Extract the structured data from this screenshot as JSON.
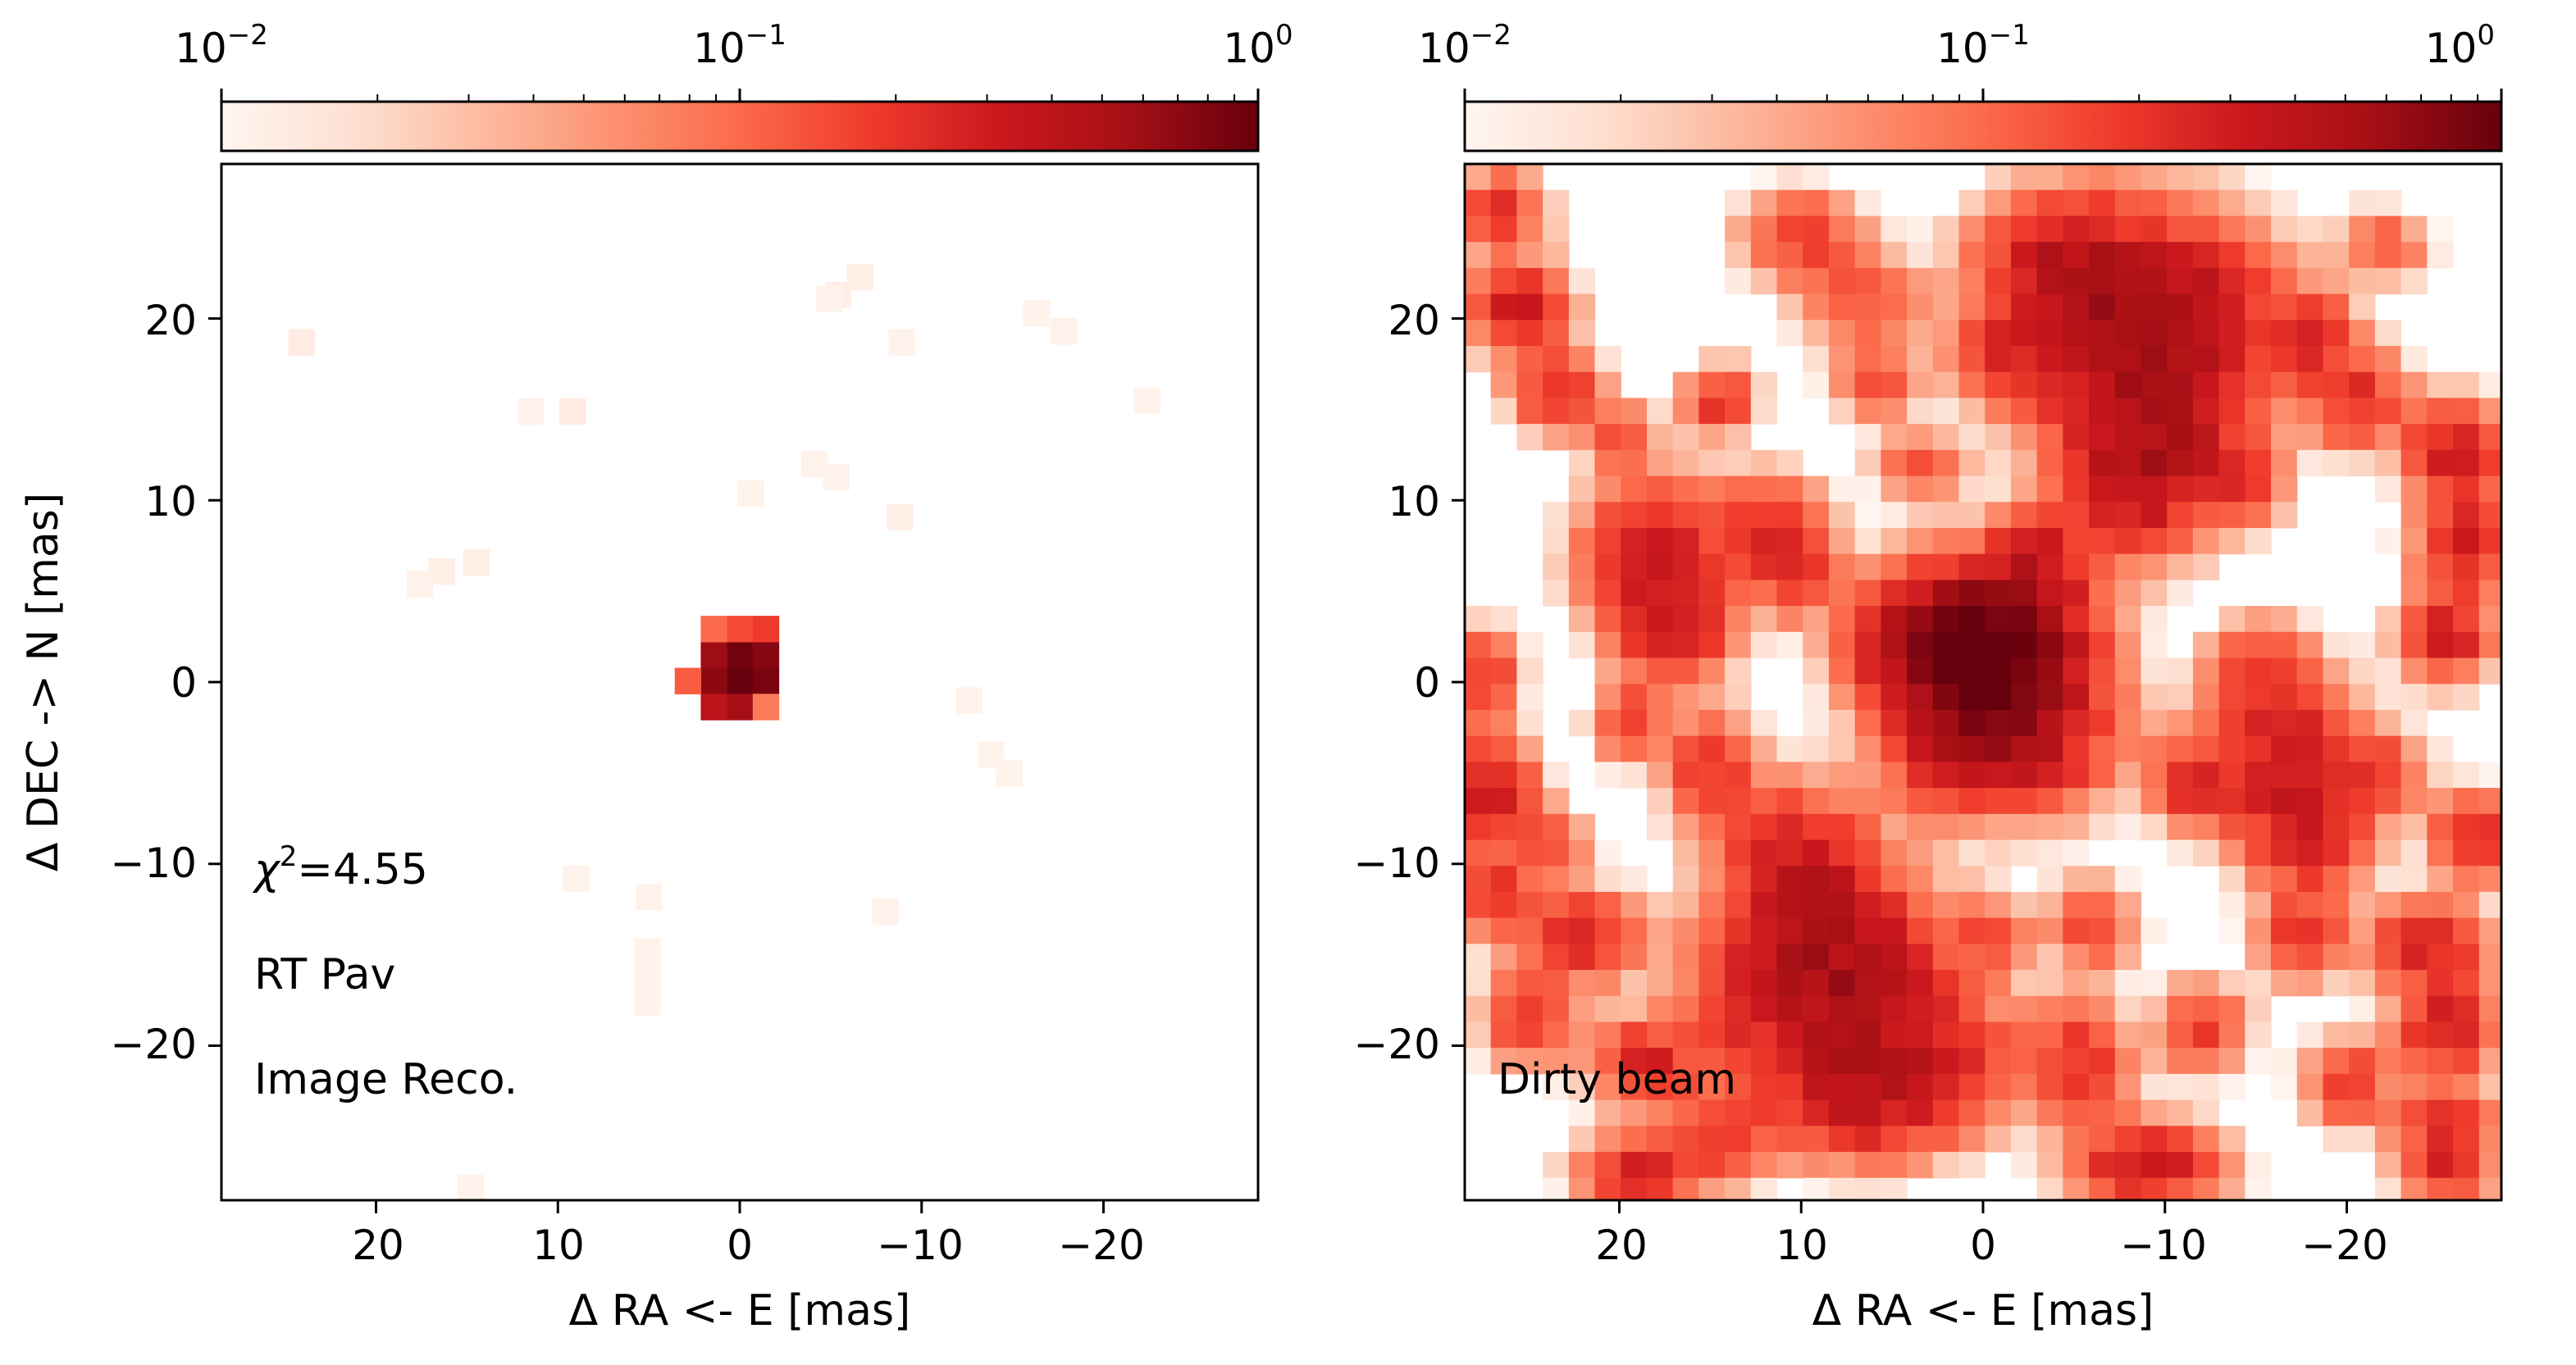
{
  "chart_data": [
    {
      "type": "heatmap",
      "panel": "left",
      "xlabel": "Δ RA <- E [mas]",
      "ylabel": "Δ DEC -> N [mas]",
      "xlim": [
        28.5,
        -28.5
      ],
      "ylim": [
        -28.5,
        28.5
      ],
      "pixel_size_mas": 1.43,
      "x_ticks": [
        {
          "value": 20,
          "label": "20"
        },
        {
          "value": 10,
          "label": "10"
        },
        {
          "value": 0,
          "label": "0"
        },
        {
          "value": -10,
          "label": "−10"
        },
        {
          "value": -20,
          "label": "−20"
        }
      ],
      "y_ticks": [
        {
          "value": 20,
          "label": "20"
        },
        {
          "value": 10,
          "label": "10"
        },
        {
          "value": 0,
          "label": "0"
        },
        {
          "value": -10,
          "label": "−10"
        },
        {
          "value": -20,
          "label": "−20"
        }
      ],
      "colormap": "Reds",
      "color_scale": "log",
      "colorbar": {
        "placement": "top",
        "range": [
          0.01,
          1
        ],
        "ticks": [
          {
            "value": 0.01,
            "base": "10",
            "exp": "−2"
          },
          {
            "value": 0.1,
            "base": "10",
            "exp": "−1"
          },
          {
            "value": 1,
            "base": "10",
            "exp": "0"
          }
        ]
      },
      "annotations": {
        "chi2_symbol": "χ",
        "chi2_exp": "2",
        "chi2_value": "=4.55",
        "target": "RT Pav",
        "label": "Image Reco."
      },
      "pixels": [
        {
          "x": 0,
          "y": 1.5,
          "v": 0.9
        },
        {
          "x": -1.43,
          "y": 1.5,
          "v": 0.75
        },
        {
          "x": 1.43,
          "y": 1.5,
          "v": 0.6
        },
        {
          "x": 0,
          "y": 0.07,
          "v": 1.0
        },
        {
          "x": -1.43,
          "y": 0.07,
          "v": 0.85
        },
        {
          "x": 1.43,
          "y": 0.07,
          "v": 0.7
        },
        {
          "x": 2.86,
          "y": 0.07,
          "v": 0.12
        },
        {
          "x": 0,
          "y": 2.93,
          "v": 0.15
        },
        {
          "x": 1.43,
          "y": 2.93,
          "v": 0.1
        },
        {
          "x": -1.43,
          "y": 2.93,
          "v": 0.18
        },
        {
          "x": 0,
          "y": -1.36,
          "v": 0.55
        },
        {
          "x": 1.43,
          "y": -1.36,
          "v": 0.4
        },
        {
          "x": -1.43,
          "y": -1.36,
          "v": 0.08
        },
        {
          "x": -5.4,
          "y": 21.3,
          "v": 0.012
        },
        {
          "x": -6.6,
          "y": 22.3,
          "v": 0.012
        },
        {
          "x": -4.9,
          "y": 21.1,
          "v": 0.011
        },
        {
          "x": 24.1,
          "y": 18.7,
          "v": 0.013
        },
        {
          "x": -8.9,
          "y": 18.7,
          "v": 0.011
        },
        {
          "x": -16.3,
          "y": 20.3,
          "v": 0.011
        },
        {
          "x": -17.8,
          "y": 19.3,
          "v": 0.011
        },
        {
          "x": 11.5,
          "y": 14.9,
          "v": 0.011
        },
        {
          "x": 9.2,
          "y": 14.9,
          "v": 0.013
        },
        {
          "x": -22.4,
          "y": 15.5,
          "v": 0.011
        },
        {
          "x": -4.1,
          "y": 12.0,
          "v": 0.011
        },
        {
          "x": -5.3,
          "y": 11.3,
          "v": 0.011
        },
        {
          "x": -0.6,
          "y": 10.4,
          "v": 0.011
        },
        {
          "x": -8.8,
          "y": 9.1,
          "v": 0.012
        },
        {
          "x": 16.4,
          "y": 6.1,
          "v": 0.012
        },
        {
          "x": 14.5,
          "y": 6.6,
          "v": 0.012
        },
        {
          "x": 17.6,
          "y": 5.4,
          "v": 0.011
        },
        {
          "x": -12.6,
          "y": -1.0,
          "v": 0.011
        },
        {
          "x": -13.8,
          "y": -4.0,
          "v": 0.011
        },
        {
          "x": -14.8,
          "y": -5.0,
          "v": 0.011
        },
        {
          "x": 9.0,
          "y": -10.8,
          "v": 0.011
        },
        {
          "x": 5.0,
          "y": -11.8,
          "v": 0.011
        },
        {
          "x": -8.0,
          "y": -12.6,
          "v": 0.011
        },
        {
          "x": 5.1,
          "y": -14.8,
          "v": 0.011
        },
        {
          "x": 5.1,
          "y": -16.2,
          "v": 0.011
        },
        {
          "x": 5.1,
          "y": -17.6,
          "v": 0.011
        },
        {
          "x": 14.8,
          "y": -27.8,
          "v": 0.011
        }
      ]
    },
    {
      "type": "heatmap",
      "panel": "right",
      "xlabel": "Δ RA <- E [mas]",
      "ylabel": "",
      "xlim": [
        28.5,
        -28.5
      ],
      "ylim": [
        -28.5,
        28.5
      ],
      "pixel_size_mas": 1.43,
      "x_ticks": [
        {
          "value": 20,
          "label": "20"
        },
        {
          "value": 10,
          "label": "10"
        },
        {
          "value": 0,
          "label": "0"
        },
        {
          "value": -10,
          "label": "−10"
        },
        {
          "value": -20,
          "label": "−20"
        }
      ],
      "y_ticks": [
        {
          "value": 20,
          "label": "20"
        },
        {
          "value": 10,
          "label": "10"
        },
        {
          "value": 0,
          "label": "0"
        },
        {
          "value": -10,
          "label": "−10"
        },
        {
          "value": -20,
          "label": "−20"
        }
      ],
      "colormap": "Reds",
      "color_scale": "log",
      "colorbar": {
        "placement": "top",
        "range": [
          0.01,
          1
        ],
        "ticks": [
          {
            "value": 0.01,
            "base": "10",
            "exp": "−2"
          },
          {
            "value": 0.1,
            "base": "10",
            "exp": "−1"
          },
          {
            "value": 1,
            "base": "10",
            "exp": "0"
          }
        ]
      },
      "annotations": {
        "label": "Dirty beam"
      },
      "blobs": [
        {
          "x": 0,
          "y": 0.5,
          "amp": 1.0,
          "sx": 2.8,
          "sy": 2.6
        },
        {
          "x": -1.5,
          "y": 3.5,
          "amp": 0.38,
          "sx": 3.0,
          "sy": 2.5
        },
        {
          "x": 3.5,
          "y": 2.0,
          "amp": 0.3,
          "sx": 2.5,
          "sy": 2.5
        },
        {
          "x": -2.5,
          "y": -3.0,
          "amp": 0.3,
          "sx": 3.0,
          "sy": 2.5
        },
        {
          "x": 2.0,
          "y": -4.5,
          "amp": 0.18,
          "sx": 2.0,
          "sy": 2.0
        },
        {
          "x": -8.0,
          "y": 20.0,
          "amp": 0.45,
          "sx": 4.5,
          "sy": 3.5
        },
        {
          "x": -9.5,
          "y": 15.0,
          "amp": 0.35,
          "sx": 3.0,
          "sy": 3.0
        },
        {
          "x": -8.5,
          "y": 11.0,
          "amp": 0.3,
          "sx": 2.5,
          "sy": 2.5
        },
        {
          "x": -4.5,
          "y": 23.5,
          "amp": 0.25,
          "sx": 2.5,
          "sy": 2.0
        },
        {
          "x": 8.0,
          "y": -17.0,
          "amp": 0.5,
          "sx": 4.0,
          "sy": 3.5
        },
        {
          "x": 10.0,
          "y": -11.0,
          "amp": 0.35,
          "sx": 2.5,
          "sy": 3.0
        },
        {
          "x": 6.5,
          "y": -23.0,
          "amp": 0.3,
          "sx": 3.0,
          "sy": 2.0
        },
        {
          "x": 1.5,
          "y": -21.0,
          "amp": 0.2,
          "sx": 2.0,
          "sy": 2.0
        },
        {
          "x": 18.0,
          "y": 7.0,
          "amp": 0.3,
          "sx": 2.5,
          "sy": 2.5
        },
        {
          "x": 17.0,
          "y": 3.0,
          "amp": 0.3,
          "sx": 1.8,
          "sy": 1.8
        },
        {
          "x": 12.0,
          "y": 9.0,
          "amp": 0.18,
          "sx": 2.0,
          "sy": 1.5
        },
        {
          "x": -16.5,
          "y": -4.0,
          "amp": 0.3,
          "sx": 2.5,
          "sy": 3.0
        },
        {
          "x": -18.0,
          "y": -8.5,
          "amp": 0.22,
          "sx": 2.0,
          "sy": 2.0
        },
        {
          "x": -15.0,
          "y": 1.0,
          "amp": 0.15,
          "sx": 1.5,
          "sy": 1.5
        },
        {
          "x": 25.5,
          "y": 20.5,
          "amp": 0.3,
          "sx": 1.6,
          "sy": 1.6
        },
        {
          "x": 23.5,
          "y": 16.0,
          "amp": 0.22,
          "sx": 1.5,
          "sy": 1.3
        },
        {
          "x": 26.5,
          "y": 26.0,
          "amp": 0.2,
          "sx": 1.5,
          "sy": 1.3
        },
        {
          "x": 20.0,
          "y": 13.5,
          "amp": 0.12,
          "sx": 1.2,
          "sy": 1.2
        },
        {
          "x": 14.5,
          "y": 15.5,
          "amp": 0.2,
          "sx": 1.2,
          "sy": 1.2
        },
        {
          "x": 10.0,
          "y": 24.5,
          "amp": 0.18,
          "sx": 2.0,
          "sy": 1.5
        },
        {
          "x": 7.0,
          "y": 21.0,
          "amp": 0.15,
          "sx": 2.0,
          "sy": 1.5
        },
        {
          "x": 3.5,
          "y": 12.0,
          "amp": 0.12,
          "sx": 1.5,
          "sy": 1.2
        },
        {
          "x": -3.0,
          "y": 7.0,
          "amp": 0.2,
          "sx": 1.5,
          "sy": 1.5
        },
        {
          "x": 10.5,
          "y": 6.0,
          "amp": 0.22,
          "sx": 1.5,
          "sy": 1.5
        },
        {
          "x": -18.0,
          "y": 19.0,
          "amp": 0.2,
          "sx": 1.5,
          "sy": 1.5
        },
        {
          "x": -20.5,
          "y": 15.5,
          "amp": 0.22,
          "sx": 1.8,
          "sy": 1.6
        },
        {
          "x": -26.0,
          "y": 12.5,
          "amp": 0.3,
          "sx": 1.7,
          "sy": 1.7
        },
        {
          "x": -26.5,
          "y": 7.5,
          "amp": 0.3,
          "sx": 1.6,
          "sy": 1.6
        },
        {
          "x": -25.5,
          "y": 2.5,
          "amp": 0.28,
          "sx": 1.5,
          "sy": 1.5
        },
        {
          "x": -27.0,
          "y": -8.5,
          "amp": 0.22,
          "sx": 1.5,
          "sy": 1.5
        },
        {
          "x": -24.5,
          "y": -14.5,
          "amp": 0.26,
          "sx": 2.0,
          "sy": 1.5
        },
        {
          "x": -25.5,
          "y": -19.0,
          "amp": 0.3,
          "sx": 1.6,
          "sy": 1.5
        },
        {
          "x": -25.5,
          "y": -24.5,
          "amp": 0.22,
          "sx": 1.8,
          "sy": 1.5
        },
        {
          "x": -20.0,
          "y": -22.0,
          "amp": 0.18,
          "sx": 1.5,
          "sy": 1.5
        },
        {
          "x": -17.5,
          "y": -14.0,
          "amp": 0.2,
          "sx": 1.5,
          "sy": 1.5
        },
        {
          "x": -11.5,
          "y": -5.5,
          "amp": 0.22,
          "sx": 1.5,
          "sy": 1.5
        },
        {
          "x": -9.0,
          "y": -26.5,
          "amp": 0.3,
          "sx": 2.5,
          "sy": 1.5
        },
        {
          "x": -5.0,
          "y": -21.0,
          "amp": 0.22,
          "sx": 1.8,
          "sy": 2.0
        },
        {
          "x": -12.0,
          "y": -19.0,
          "amp": 0.18,
          "sx": 1.5,
          "sy": 1.5
        },
        {
          "x": 27.0,
          "y": -6.0,
          "amp": 0.3,
          "sx": 1.5,
          "sy": 2.0
        },
        {
          "x": 27.5,
          "y": 0.5,
          "amp": 0.2,
          "sx": 1.2,
          "sy": 1.5
        },
        {
          "x": 27.0,
          "y": -11.5,
          "amp": 0.2,
          "sx": 1.5,
          "sy": 1.5
        },
        {
          "x": 22.0,
          "y": -14.0,
          "amp": 0.25,
          "sx": 2.0,
          "sy": 1.5
        },
        {
          "x": 25.0,
          "y": -18.5,
          "amp": 0.22,
          "sx": 1.5,
          "sy": 1.5
        },
        {
          "x": 18.5,
          "y": -21.0,
          "amp": 0.25,
          "sx": 1.8,
          "sy": 1.5
        },
        {
          "x": 19.0,
          "y": -27.0,
          "amp": 0.25,
          "sx": 2.0,
          "sy": 1.3
        },
        {
          "x": 14.5,
          "y": -25.0,
          "amp": 0.2,
          "sx": 1.8,
          "sy": 1.5
        },
        {
          "x": 15.0,
          "y": -5.0,
          "amp": 0.2,
          "sx": 1.5,
          "sy": 2.0
        },
        {
          "x": 19.5,
          "y": -2.0,
          "amp": 0.15,
          "sx": 1.2,
          "sy": 1.5
        },
        {
          "x": -6.0,
          "y": -13.5,
          "amp": 0.15,
          "sx": 1.5,
          "sy": 1.5
        },
        {
          "x": -0.5,
          "y": -14.0,
          "amp": 0.12,
          "sx": 1.2,
          "sy": 1.2
        },
        {
          "x": -22.0,
          "y": -5.0,
          "amp": 0.15,
          "sx": 1.5,
          "sy": 1.5
        },
        {
          "x": -14.0,
          "y": 11.0,
          "amp": 0.16,
          "sx": 1.5,
          "sy": 1.5
        },
        {
          "x": -13.5,
          "y": 22.0,
          "amp": 0.14,
          "sx": 1.5,
          "sy": 1.2
        },
        {
          "x": -22.0,
          "y": 24.0,
          "amp": 0.12,
          "sx": 1.5,
          "sy": 1.2
        },
        {
          "x": 6.0,
          "y": 16.5,
          "amp": 0.13,
          "sx": 1.5,
          "sy": 1.2
        },
        {
          "x": -1.0,
          "y": 18.0,
          "amp": 0.12,
          "sx": 1.5,
          "sy": 1.5
        },
        {
          "x": -25.5,
          "y": -27.0,
          "amp": 0.2,
          "sx": 1.5,
          "sy": 1.0
        },
        {
          "x": 23.5,
          "y": -9.0,
          "amp": 0.13,
          "sx": 1.2,
          "sy": 1.2
        },
        {
          "x": 14.0,
          "y": -18.0,
          "amp": 0.12,
          "sx": 1.2,
          "sy": 1.2
        }
      ]
    }
  ]
}
